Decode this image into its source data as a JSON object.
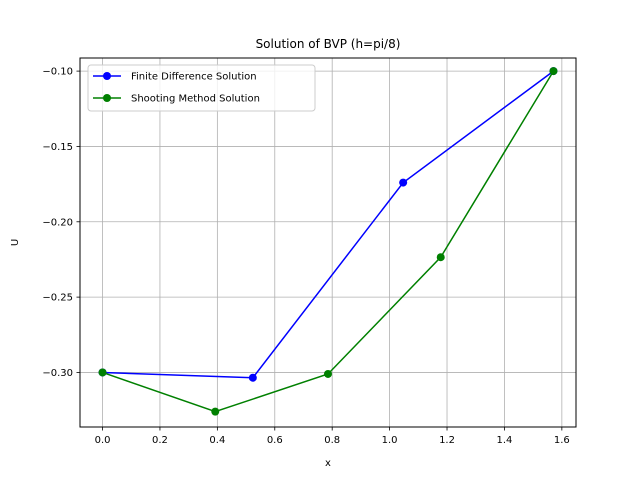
{
  "chart_data": {
    "type": "line",
    "title": "Solution of BVP (h=pi/8)",
    "xlabel": "x",
    "ylabel": "U",
    "xlim": [
      -0.0785,
      1.6493
    ],
    "ylim": [
      -0.3362,
      -0.0913
    ],
    "xticks": [
      0.0,
      0.2,
      0.4,
      0.6,
      0.8,
      1.0,
      1.2,
      1.4,
      1.6
    ],
    "xtick_labels": [
      "0.0",
      "0.2",
      "0.4",
      "0.6",
      "0.8",
      "1.0",
      "1.2",
      "1.4",
      "1.6"
    ],
    "yticks": [
      -0.3,
      -0.25,
      -0.2,
      -0.15,
      -0.1
    ],
    "ytick_labels": [
      "−0.30",
      "−0.25",
      "−0.20",
      "−0.15",
      "−0.10"
    ],
    "grid": true,
    "legend_position": "top-left",
    "series": [
      {
        "name": "Finite Difference Solution",
        "color": "#0000ff",
        "x": [
          0.0,
          0.5236,
          1.0472,
          1.5708
        ],
        "y": [
          -0.3,
          -0.3035,
          -0.174,
          -0.1
        ]
      },
      {
        "name": "Shooting Method Solution",
        "color": "#008000",
        "x": [
          0.0,
          0.3927,
          0.7854,
          1.1781,
          1.5708
        ],
        "y": [
          -0.3,
          -0.326,
          -0.301,
          -0.2235,
          -0.1
        ]
      }
    ]
  }
}
